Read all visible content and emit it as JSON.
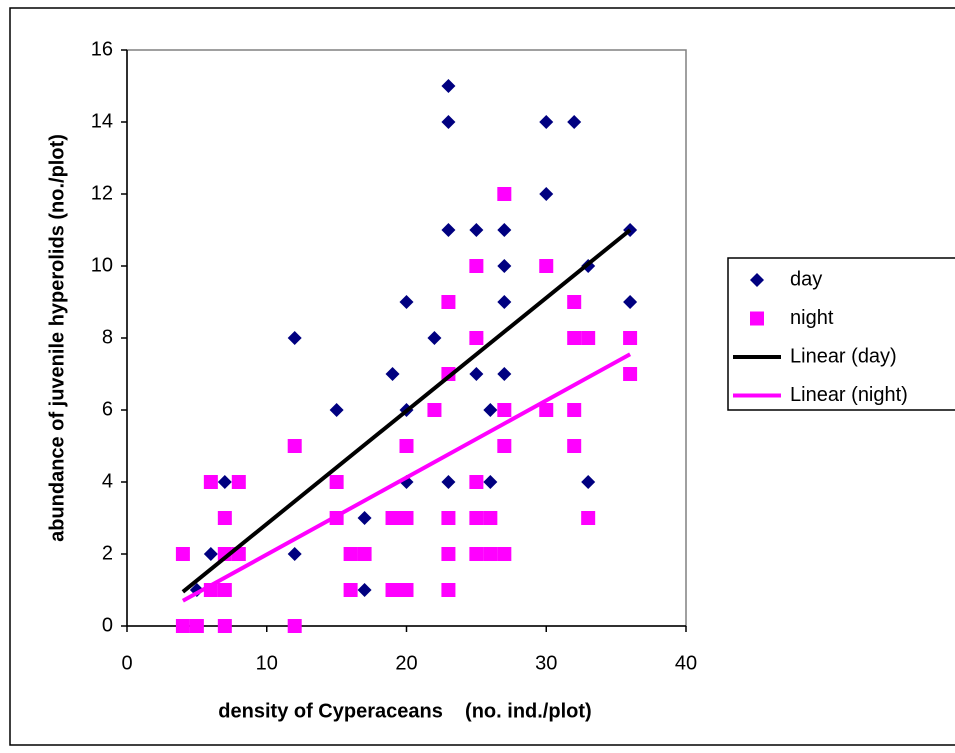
{
  "chart_data": {
    "type": "scatter",
    "xlabel": "density of Cyperaceans    (no. ind./plot)",
    "ylabel": "abundance of juvenile hyperolids (no./plot)",
    "xlim": [
      0,
      40
    ],
    "xticks": [
      0,
      10,
      20,
      30,
      40
    ],
    "ylim": [
      0,
      16
    ],
    "yticks": [
      0,
      2,
      4,
      6,
      8,
      10,
      12,
      14,
      16
    ],
    "legend": "right",
    "series": [
      {
        "name": "day",
        "color": "#000080",
        "marker": "diamond",
        "x": [
          5,
          6,
          7,
          12,
          12,
          15,
          17,
          17,
          19,
          20,
          20,
          20,
          22,
          23,
          23,
          23,
          23,
          25,
          25,
          25,
          26,
          26,
          27,
          27,
          27,
          27,
          30,
          30,
          32,
          33,
          33,
          36,
          36
        ],
        "values": [
          1,
          2,
          4,
          8,
          2,
          6,
          3,
          1,
          7,
          9,
          6,
          4,
          8,
          15,
          14,
          11,
          4,
          11,
          8,
          7,
          6,
          4,
          11,
          10,
          9,
          7,
          14,
          12,
          14,
          10,
          4,
          11,
          9
        ]
      },
      {
        "name": "night",
        "color": "#ff00ff",
        "marker": "square",
        "x": [
          4,
          4,
          5,
          6,
          6,
          7,
          7,
          7,
          7,
          8,
          8,
          12,
          12,
          15,
          15,
          16,
          16,
          17,
          19,
          19,
          20,
          20,
          20,
          22,
          23,
          23,
          23,
          23,
          23,
          25,
          25,
          25,
          25,
          25,
          26,
          26,
          27,
          27,
          27,
          27,
          30,
          30,
          32,
          32,
          32,
          32,
          33,
          33,
          36,
          36
        ],
        "values": [
          2,
          0,
          0,
          4,
          1,
          3,
          2,
          1,
          0,
          4,
          2,
          5,
          0,
          4,
          3,
          2,
          1,
          2,
          3,
          1,
          5,
          3,
          1,
          6,
          9,
          7,
          3,
          2,
          1,
          10,
          8,
          4,
          3,
          2,
          3,
          2,
          12,
          6,
          5,
          2,
          10,
          6,
          9,
          8,
          6,
          5,
          8,
          3,
          8,
          7
        ]
      },
      {
        "name": "Linear (day)",
        "color": "#000000",
        "marker": "line",
        "x": [
          4,
          36
        ],
        "values": [
          0.95,
          11
        ]
      },
      {
        "name": "Linear (night)",
        "color": "#ff00ff",
        "marker": "line",
        "x": [
          4,
          36
        ],
        "values": [
          0.7,
          7.55
        ]
      }
    ]
  }
}
